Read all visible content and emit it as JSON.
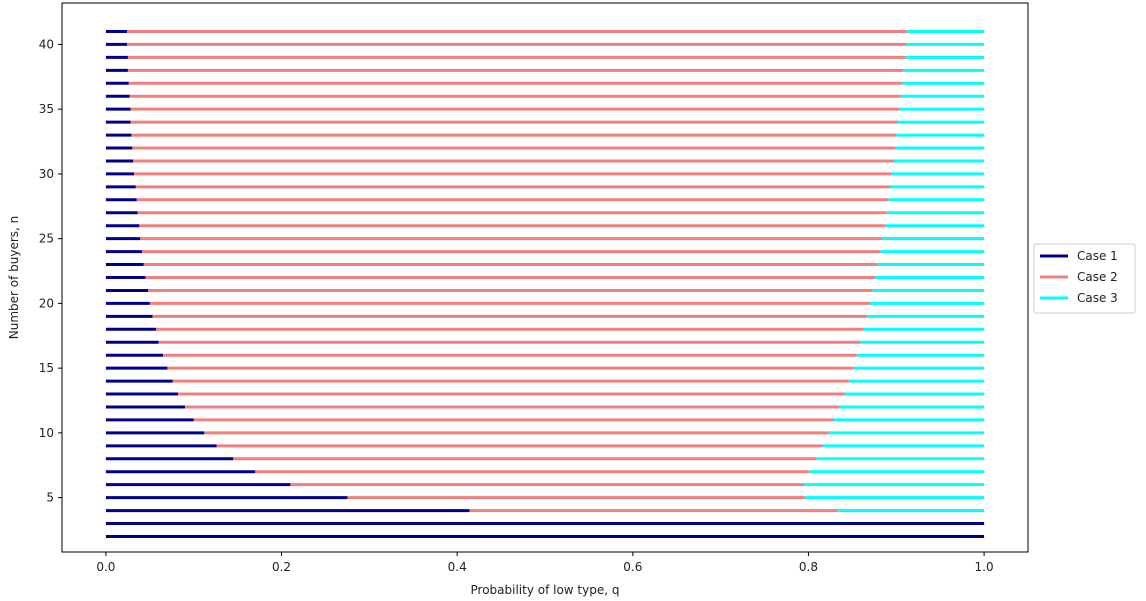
{
  "chart_data": {
    "type": "line",
    "title": "",
    "xlabel": "Probability of low type, q",
    "ylabel": "Number of buyers, n",
    "xlim": [
      -0.05,
      1.05
    ],
    "ylim": [
      0.8,
      43.2
    ],
    "xticks": [
      0.0,
      0.2,
      0.4,
      0.6,
      0.8,
      1.0
    ],
    "xtick_labels": [
      "0.0",
      "0.2",
      "0.4",
      "0.6",
      "0.8",
      "1.0"
    ],
    "yticks": [
      5,
      10,
      15,
      20,
      25,
      30,
      35,
      40
    ],
    "ytick_labels": [
      "5",
      "10",
      "15",
      "20",
      "25",
      "30",
      "35",
      "40"
    ],
    "grid": false,
    "legend_position": "outside-right",
    "series": [
      {
        "name": "Case 1",
        "color": "#00008b"
      },
      {
        "name": "Case 2",
        "color": "#f08080"
      },
      {
        "name": "Case 3",
        "color": "#00ffff"
      }
    ],
    "rows": [
      {
        "n": 2,
        "case1_end": 1.0,
        "case2_end": 1.0
      },
      {
        "n": 3,
        "case1_end": 1.0,
        "case2_end": 1.0
      },
      {
        "n": 4,
        "case1_end": 0.414,
        "case2_end": 0.833
      },
      {
        "n": 5,
        "case1_end": 0.275,
        "case2_end": 0.796
      },
      {
        "n": 6,
        "case1_end": 0.21,
        "case2_end": 0.795
      },
      {
        "n": 7,
        "case1_end": 0.17,
        "case2_end": 0.801
      },
      {
        "n": 8,
        "case1_end": 0.145,
        "case2_end": 0.809
      },
      {
        "n": 9,
        "case1_end": 0.126,
        "case2_end": 0.816
      },
      {
        "n": 10,
        "case1_end": 0.112,
        "case2_end": 0.823
      },
      {
        "n": 11,
        "case1_end": 0.1,
        "case2_end": 0.829
      },
      {
        "n": 12,
        "case1_end": 0.09,
        "case2_end": 0.835
      },
      {
        "n": 13,
        "case1_end": 0.082,
        "case2_end": 0.841
      },
      {
        "n": 14,
        "case1_end": 0.076,
        "case2_end": 0.846
      },
      {
        "n": 15,
        "case1_end": 0.07,
        "case2_end": 0.851
      },
      {
        "n": 16,
        "case1_end": 0.065,
        "case2_end": 0.855
      },
      {
        "n": 17,
        "case1_end": 0.06,
        "case2_end": 0.859
      },
      {
        "n": 18,
        "case1_end": 0.057,
        "case2_end": 0.863
      },
      {
        "n": 19,
        "case1_end": 0.053,
        "case2_end": 0.867
      },
      {
        "n": 20,
        "case1_end": 0.05,
        "case2_end": 0.87
      },
      {
        "n": 21,
        "case1_end": 0.048,
        "case2_end": 0.873
      },
      {
        "n": 22,
        "case1_end": 0.045,
        "case2_end": 0.876
      },
      {
        "n": 23,
        "case1_end": 0.043,
        "case2_end": 0.879
      },
      {
        "n": 24,
        "case1_end": 0.041,
        "case2_end": 0.882
      },
      {
        "n": 25,
        "case1_end": 0.039,
        "case2_end": 0.884
      },
      {
        "n": 26,
        "case1_end": 0.038,
        "case2_end": 0.887
      },
      {
        "n": 27,
        "case1_end": 0.036,
        "case2_end": 0.889
      },
      {
        "n": 28,
        "case1_end": 0.035,
        "case2_end": 0.891
      },
      {
        "n": 29,
        "case1_end": 0.034,
        "case2_end": 0.893
      },
      {
        "n": 30,
        "case1_end": 0.032,
        "case2_end": 0.895
      },
      {
        "n": 31,
        "case1_end": 0.031,
        "case2_end": 0.897
      },
      {
        "n": 32,
        "case1_end": 0.03,
        "case2_end": 0.899
      },
      {
        "n": 33,
        "case1_end": 0.029,
        "case2_end": 0.9
      },
      {
        "n": 34,
        "case1_end": 0.028,
        "case2_end": 0.902
      },
      {
        "n": 35,
        "case1_end": 0.028,
        "case2_end": 0.904
      },
      {
        "n": 36,
        "case1_end": 0.027,
        "case2_end": 0.905
      },
      {
        "n": 37,
        "case1_end": 0.026,
        "case2_end": 0.907
      },
      {
        "n": 38,
        "case1_end": 0.025,
        "case2_end": 0.908
      },
      {
        "n": 39,
        "case1_end": 0.025,
        "case2_end": 0.91
      },
      {
        "n": 40,
        "case1_end": 0.024,
        "case2_end": 0.911
      },
      {
        "n": 41,
        "case1_end": 0.024,
        "case2_end": 0.912
      }
    ]
  }
}
